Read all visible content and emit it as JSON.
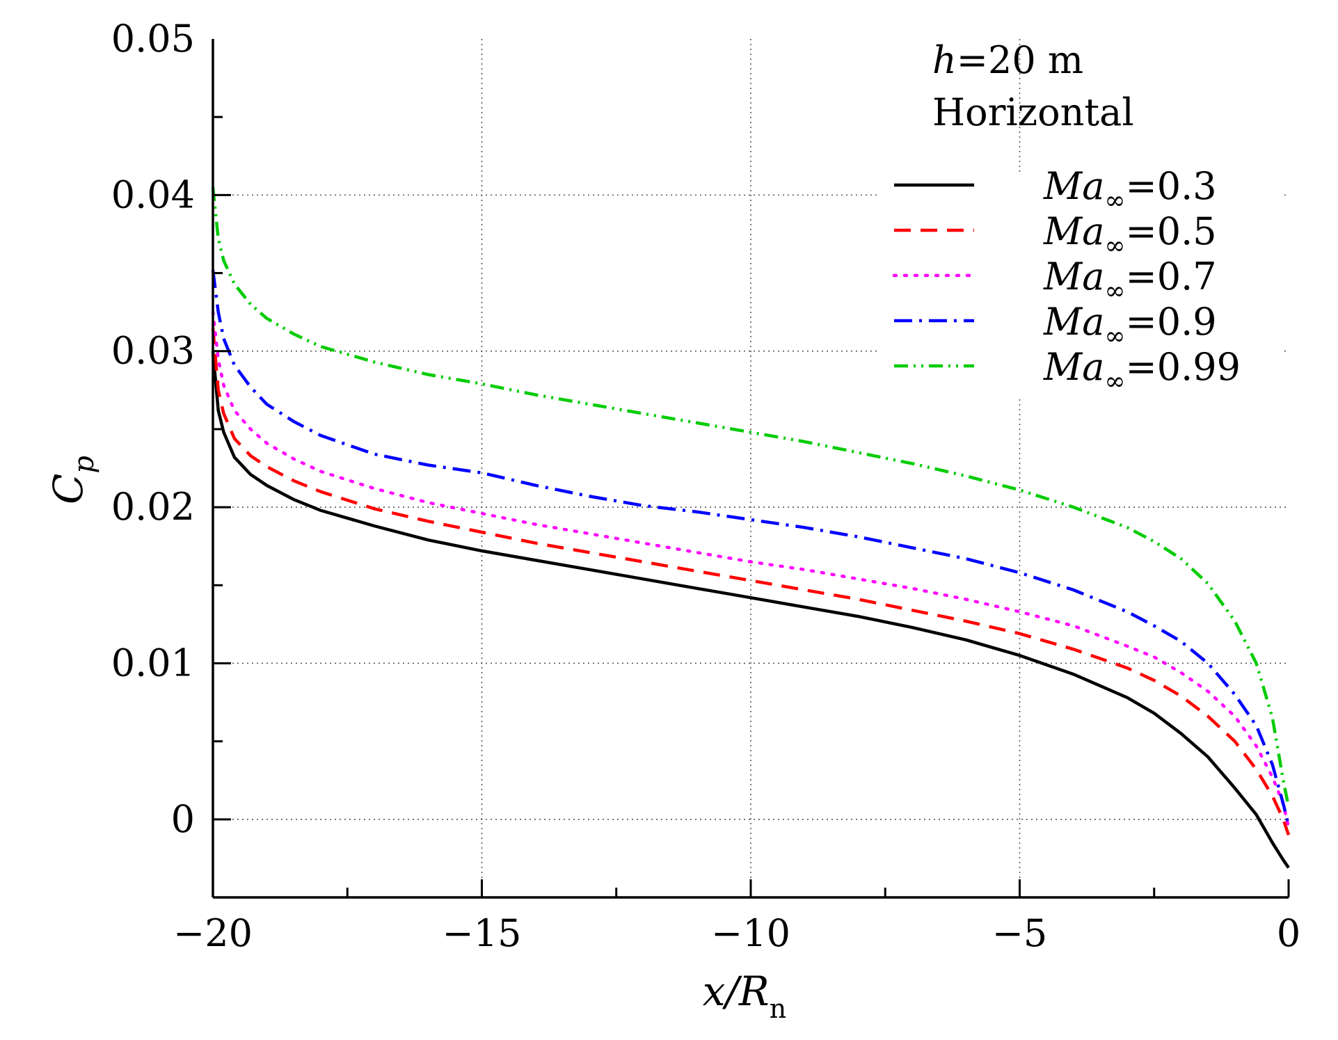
{
  "chart_data": {
    "type": "line",
    "xlabel": {
      "main": "x/R",
      "sub": "n"
    },
    "ylabel": {
      "main": "C",
      "sub": "p"
    },
    "xlim": [
      -20,
      0
    ],
    "ylim": [
      -0.005,
      0.05
    ],
    "xticks": [
      -20,
      -15,
      -10,
      -5,
      0
    ],
    "xtick_labels": [
      "−20",
      "−15",
      "−10",
      "−5",
      "0"
    ],
    "yticks": [
      0,
      0.01,
      0.02,
      0.03,
      0.04,
      0.05
    ],
    "ytick_labels": [
      "0",
      "0.01",
      "0.02",
      "0.03",
      "0.04",
      "0.05"
    ],
    "grid": true,
    "legend_position": "top-right",
    "annotations": {
      "line1_italic": "h",
      "line1_rest": "=20 m",
      "line2": "Horizontal"
    },
    "series": [
      {
        "name": "Ma∞=0.3",
        "legend": {
          "italic": "Ma",
          "sub": "∞",
          "rest": "=0.3"
        },
        "color": "#000000",
        "dash": "solid",
        "x": [
          -20,
          -19.9,
          -19.8,
          -19.6,
          -19.3,
          -19.0,
          -18.5,
          -18.0,
          -17.0,
          -16.0,
          -15.0,
          -14.0,
          -13.0,
          -12.0,
          -11.0,
          -10.0,
          -9.0,
          -8.0,
          -7.0,
          -6.0,
          -5.0,
          -4.0,
          -3.0,
          -2.5,
          -2.0,
          -1.5,
          -1.0,
          -0.6,
          -0.3,
          -0.1,
          0
        ],
        "y": [
          0.03,
          0.0262,
          0.0248,
          0.0232,
          0.0221,
          0.0214,
          0.0205,
          0.0198,
          0.0188,
          0.0179,
          0.0172,
          0.0166,
          0.016,
          0.0154,
          0.0148,
          0.0142,
          0.0136,
          0.013,
          0.0123,
          0.0115,
          0.0105,
          0.0093,
          0.0078,
          0.0068,
          0.0055,
          0.004,
          0.002,
          0.0003,
          -0.0015,
          -0.0026,
          -0.0031
        ]
      },
      {
        "name": "Ma∞=0.5",
        "legend": {
          "italic": "Ma",
          "sub": "∞",
          "rest": "=0.5"
        },
        "color": "#ff0000",
        "dash": "dashed",
        "x": [
          -20,
          -19.9,
          -19.8,
          -19.6,
          -19.3,
          -19.0,
          -18.5,
          -18.0,
          -17.0,
          -16.0,
          -15.0,
          -14.0,
          -13.0,
          -12.0,
          -11.0,
          -10.0,
          -9.0,
          -8.0,
          -7.0,
          -6.0,
          -5.0,
          -4.0,
          -3.0,
          -2.5,
          -2.0,
          -1.5,
          -1.0,
          -0.6,
          -0.3,
          -0.1,
          0
        ],
        "y": [
          0.0315,
          0.0275,
          0.026,
          0.0244,
          0.0233,
          0.0226,
          0.0217,
          0.021,
          0.0199,
          0.0191,
          0.0184,
          0.0177,
          0.0171,
          0.0165,
          0.0159,
          0.0153,
          0.0147,
          0.0141,
          0.0134,
          0.0127,
          0.0119,
          0.0109,
          0.0097,
          0.0089,
          0.0079,
          0.0066,
          0.005,
          0.0032,
          0.0015,
          0.0,
          -0.001
        ]
      },
      {
        "name": "Ma∞=0.7",
        "legend": {
          "italic": "Ma",
          "sub": "∞",
          "rest": "=0.7"
        },
        "color": "#ff00ff",
        "dash": "dotted",
        "x": [
          -20,
          -19.9,
          -19.8,
          -19.6,
          -19.3,
          -19.0,
          -18.5,
          -18.0,
          -17.0,
          -16.0,
          -15.0,
          -14.0,
          -13.0,
          -12.0,
          -11.0,
          -10.0,
          -9.0,
          -8.0,
          -7.0,
          -6.0,
          -5.0,
          -4.0,
          -3.0,
          -2.5,
          -2.0,
          -1.5,
          -1.0,
          -0.6,
          -0.3,
          -0.1,
          0
        ],
        "y": [
          0.0325,
          0.0295,
          0.0278,
          0.0262,
          0.025,
          0.0241,
          0.0231,
          0.0223,
          0.0212,
          0.0203,
          0.0196,
          0.0189,
          0.0183,
          0.0177,
          0.0171,
          0.0165,
          0.016,
          0.0154,
          0.0148,
          0.0141,
          0.0133,
          0.0124,
          0.0111,
          0.0104,
          0.0094,
          0.0082,
          0.0066,
          0.0047,
          0.0027,
          0.001,
          -0.0005
        ]
      },
      {
        "name": "Ma∞=0.9",
        "legend": {
          "italic": "Ma",
          "sub": "∞",
          "rest": "=0.9"
        },
        "color": "#0000ff",
        "dash": "dashdot",
        "x": [
          -20,
          -19.9,
          -19.8,
          -19.6,
          -19.3,
          -19.0,
          -18.5,
          -18.0,
          -17.0,
          -16.0,
          -15.0,
          -14.0,
          -13.0,
          -12.0,
          -11.0,
          -10.0,
          -9.0,
          -8.0,
          -7.0,
          -6.0,
          -5.0,
          -4.0,
          -3.0,
          -2.5,
          -2.0,
          -1.5,
          -1.0,
          -0.6,
          -0.3,
          -0.1,
          0
        ],
        "y": [
          0.0352,
          0.0325,
          0.0308,
          0.0291,
          0.0277,
          0.0266,
          0.0255,
          0.0246,
          0.0234,
          0.0227,
          0.0222,
          0.0214,
          0.0207,
          0.0201,
          0.0197,
          0.0192,
          0.0187,
          0.0181,
          0.0174,
          0.0167,
          0.0158,
          0.0147,
          0.0133,
          0.0124,
          0.0114,
          0.01,
          0.008,
          0.006,
          0.0035,
          0.001,
          -0.0004
        ]
      },
      {
        "name": "Ma∞=0.99",
        "legend": {
          "italic": "Ma",
          "sub": "∞",
          "rest": "=0.99"
        },
        "color": "#00cc00",
        "dash": "dashdotdot",
        "x": [
          -20,
          -19.9,
          -19.8,
          -19.6,
          -19.3,
          -19.0,
          -18.5,
          -18.0,
          -17.0,
          -16.0,
          -15.0,
          -14.0,
          -13.0,
          -12.0,
          -11.0,
          -10.0,
          -9.0,
          -8.0,
          -7.0,
          -6.0,
          -5.0,
          -4.0,
          -3.0,
          -2.5,
          -2.0,
          -1.5,
          -1.0,
          -0.6,
          -0.3,
          -0.1,
          0
        ],
        "y": [
          0.0405,
          0.0372,
          0.0358,
          0.0343,
          0.033,
          0.0321,
          0.0311,
          0.0303,
          0.0293,
          0.0285,
          0.0279,
          0.0272,
          0.0266,
          0.026,
          0.0254,
          0.0248,
          0.0242,
          0.0235,
          0.0228,
          0.022,
          0.0211,
          0.02,
          0.0187,
          0.0178,
          0.0167,
          0.0151,
          0.0127,
          0.01,
          0.0065,
          0.0025,
          0.0008
        ]
      }
    ]
  }
}
